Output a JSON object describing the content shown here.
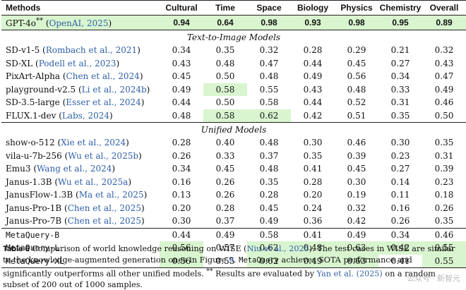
{
  "table": {
    "columns": [
      "Methods",
      "Cultural",
      "Time",
      "Space",
      "Biology",
      "Physics",
      "Chemistry",
      "Overall"
    ],
    "gpt_row": {
      "method": "GPT-4o",
      "superscript": "**",
      "cite_open": " (",
      "cite": "OpenAI, 2025",
      "cite_close": ")",
      "values": [
        "0.94",
        "0.64",
        "0.98",
        "0.93",
        "0.98",
        "0.95",
        "0.89"
      ]
    },
    "sections": [
      {
        "title": "Text-to-Image Models",
        "rows": [
          {
            "method": "SD-v1-5",
            "cite": "Rombach et al., 2021",
            "values": [
              "0.34",
              "0.35",
              "0.32",
              "0.28",
              "0.29",
              "0.21",
              "0.32"
            ],
            "highlight": []
          },
          {
            "method": "SD-XL",
            "cite": "Podell et al., 2023",
            "values": [
              "0.43",
              "0.48",
              "0.47",
              "0.44",
              "0.45",
              "0.27",
              "0.43"
            ],
            "highlight": []
          },
          {
            "method": "PixArt-Alpha",
            "cite": "Chen et al., 2024",
            "values": [
              "0.45",
              "0.50",
              "0.48",
              "0.49",
              "0.56",
              "0.34",
              "0.47"
            ],
            "highlight": []
          },
          {
            "method": "playground-v2.5",
            "cite": "Li et al., 2024b",
            "values": [
              "0.49",
              "0.58",
              "0.55",
              "0.43",
              "0.48",
              "0.33",
              "0.49"
            ],
            "highlight": [
              1
            ]
          },
          {
            "method": "SD-3.5-large",
            "cite": "Esser et al., 2024",
            "values": [
              "0.44",
              "0.50",
              "0.58",
              "0.44",
              "0.52",
              "0.31",
              "0.46"
            ],
            "highlight": []
          },
          {
            "method": "FLUX.1-dev",
            "cite": "Labs, 2024",
            "values": [
              "0.48",
              "0.58",
              "0.62",
              "0.42",
              "0.51",
              "0.35",
              "0.50"
            ],
            "highlight": [
              1,
              2
            ]
          }
        ]
      },
      {
        "title": "Unified Models",
        "rows": [
          {
            "method": "show-o-512",
            "cite": "Xie et al., 2024",
            "values": [
              "0.28",
              "0.40",
              "0.48",
              "0.30",
              "0.46",
              "0.30",
              "0.35"
            ],
            "highlight": []
          },
          {
            "method": "vila-u-7b-256",
            "cite": "Wu et al., 2025b",
            "values": [
              "0.26",
              "0.33",
              "0.37",
              "0.35",
              "0.39",
              "0.23",
              "0.31"
            ],
            "highlight": []
          },
          {
            "method": "Emu3",
            "cite": "Wang et al., 2024",
            "values": [
              "0.34",
              "0.45",
              "0.48",
              "0.41",
              "0.45",
              "0.27",
              "0.39"
            ],
            "highlight": []
          },
          {
            "method": "Janus-1.3B",
            "cite": "Wu et al., 2025a",
            "values": [
              "0.16",
              "0.26",
              "0.35",
              "0.28",
              "0.30",
              "0.14",
              "0.23"
            ],
            "highlight": []
          },
          {
            "method": "JanusFlow-1.3B",
            "cite": "Ma et al., 2025",
            "values": [
              "0.13",
              "0.26",
              "0.28",
              "0.20",
              "0.19",
              "0.11",
              "0.18"
            ],
            "highlight": []
          },
          {
            "method": "Janus-Pro-1B",
            "cite": "Chen et al., 2025",
            "values": [
              "0.20",
              "0.28",
              "0.45",
              "0.24",
              "0.32",
              "0.16",
              "0.26"
            ],
            "highlight": []
          },
          {
            "method": "Janus-Pro-7B",
            "cite": "Chen et al., 2025",
            "values": [
              "0.30",
              "0.37",
              "0.49",
              "0.36",
              "0.42",
              "0.26",
              "0.35"
            ],
            "highlight": []
          }
        ]
      }
    ],
    "metaquery_rows": [
      {
        "method": "MetaQuery-B",
        "values": [
          "0.44",
          "0.49",
          "0.58",
          "0.41",
          "0.49",
          "0.34",
          "0.46"
        ],
        "highlight": []
      },
      {
        "method": "MetaQuery-L",
        "values": [
          "0.56",
          "0.57",
          "0.62",
          "0.48",
          "0.63",
          "0.42",
          "0.55"
        ],
        "highlight": [
          0,
          2,
          3,
          4,
          5,
          6
        ]
      },
      {
        "method": "MetaQuery-XL",
        "values": [
          "0.56",
          "0.55",
          "0.62",
          "0.49",
          "0.63",
          "0.41",
          "0.55"
        ],
        "highlight": [
          0,
          2,
          3,
          4,
          6
        ]
      }
    ]
  },
  "caption": {
    "label": "Table 6",
    "text1": "Comparison of world knowledge reasoning on WISE (",
    "cite1": "Niu et al., 2025",
    "text2": "). The test cases in WISE are similar to the knowledge-augmented generation ones in Figure ",
    "fig_ref": "9",
    "text3": ". ",
    "mono": "MetaQuery",
    "text4": " achieves SOTA performance and significantly outperforms all other unified models. ",
    "stars": "**",
    "text5": " Results are evaluated by ",
    "cite2": "Yan et al. (2025)",
    "text6": " on a random subset of 200 out of 1000 samples."
  },
  "watermark": "公众号 · 新智元",
  "colors": {
    "highlight": "#d9f5cf",
    "citation": "#2f5fa8"
  }
}
